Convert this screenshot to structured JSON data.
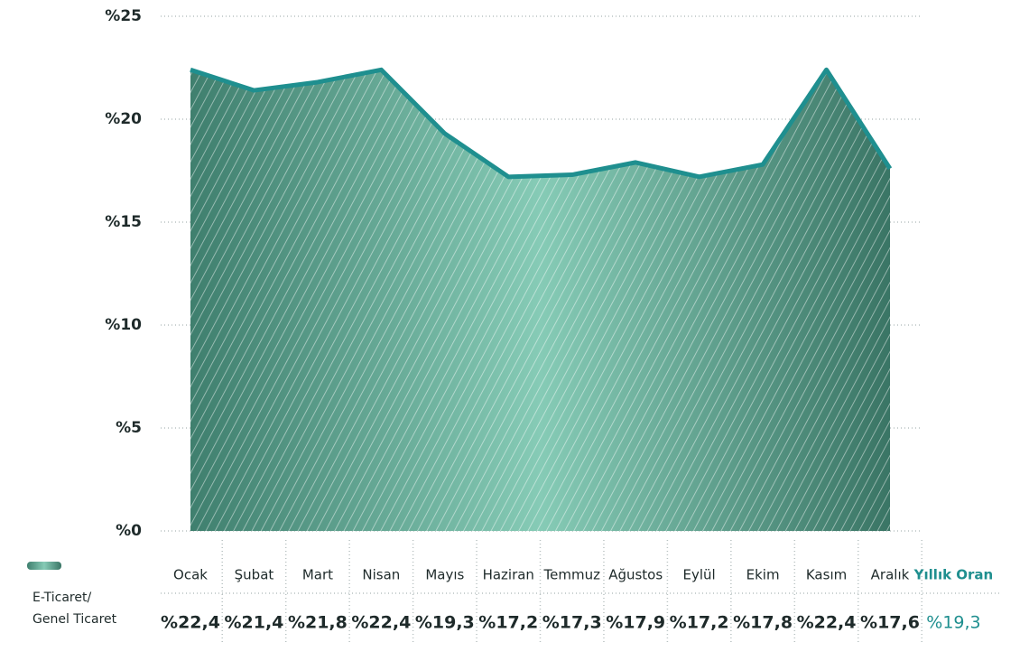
{
  "chart_data": {
    "type": "area",
    "categories": [
      "Ocak",
      "Şubat",
      "Mart",
      "Nisan",
      "Mayıs",
      "Haziran",
      "Temmuz",
      "Ağustos",
      "Eylül",
      "Ekim",
      "Kasım",
      "Aralık"
    ],
    "series": [
      {
        "name": "E-Ticaret/ Genel Ticaret",
        "color": "#1f8f8f",
        "values": [
          22.4,
          21.4,
          21.8,
          22.4,
          19.3,
          17.2,
          17.3,
          17.9,
          17.2,
          17.8,
          22.4,
          17.6
        ],
        "value_labels": [
          "%22,4",
          "%21,4",
          "%21,8",
          "%22,4",
          "%19,3",
          "%17,2",
          "%17,3",
          "%17,9",
          "%17,2",
          "%17,8",
          "%22,4",
          "%17,6"
        ]
      }
    ],
    "annual": {
      "label": "Yıllık Oran",
      "value": 19.3,
      "value_label": "%19,3"
    },
    "ylim": [
      0,
      25
    ],
    "yticks": [
      {
        "value": 0,
        "label": "%0"
      },
      {
        "value": 5,
        "label": "%5"
      },
      {
        "value": 10,
        "label": "%10"
      },
      {
        "value": 15,
        "label": "%15"
      },
      {
        "value": 20,
        "label": "%20"
      },
      {
        "value": 25,
        "label": "%25"
      }
    ],
    "grid": true
  }
}
